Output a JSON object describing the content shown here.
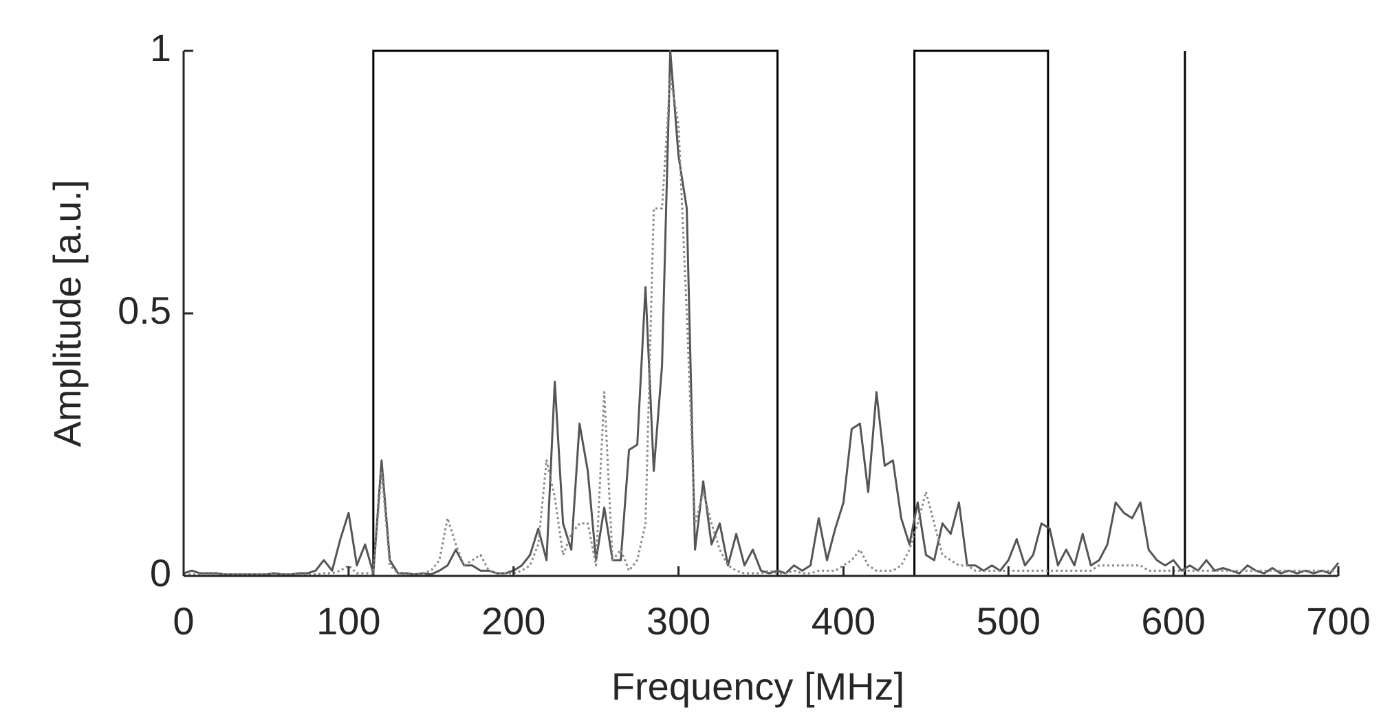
{
  "chart_data": {
    "type": "line",
    "xlabel": "Frequency [MHz]",
    "ylabel": "Amplitude [a.u.]",
    "x": [
      0,
      5,
      10,
      15,
      20,
      25,
      30,
      35,
      40,
      45,
      50,
      55,
      60,
      65,
      70,
      75,
      80,
      85,
      90,
      95,
      100,
      105,
      110,
      115,
      120,
      125,
      130,
      135,
      140,
      145,
      150,
      155,
      160,
      165,
      170,
      175,
      180,
      185,
      190,
      195,
      200,
      205,
      210,
      215,
      220,
      225,
      230,
      235,
      240,
      245,
      250,
      255,
      260,
      265,
      270,
      275,
      280,
      285,
      290,
      295,
      300,
      305,
      310,
      315,
      320,
      325,
      330,
      335,
      340,
      345,
      350,
      355,
      360,
      365,
      370,
      375,
      380,
      385,
      390,
      395,
      400,
      405,
      410,
      415,
      420,
      425,
      430,
      435,
      440,
      445,
      450,
      455,
      460,
      465,
      470,
      475,
      480,
      485,
      490,
      495,
      500,
      505,
      510,
      515,
      520,
      525,
      530,
      535,
      540,
      545,
      550,
      555,
      560,
      565,
      570,
      575,
      580,
      585,
      590,
      595,
      600,
      605,
      610,
      615,
      620,
      625,
      630,
      635,
      640,
      645,
      650,
      655,
      660,
      665,
      670,
      675,
      680,
      685,
      690,
      695,
      700
    ],
    "series": [
      {
        "color": "#555555",
        "style": "solid",
        "values": [
          0.005,
          0.01,
          0.005,
          0.005,
          0.005,
          0.003,
          0.003,
          0.003,
          0.003,
          0.003,
          0.003,
          0.005,
          0.003,
          0.003,
          0.005,
          0.005,
          0.01,
          0.03,
          0.01,
          0.07,
          0.12,
          0.02,
          0.06,
          0.005,
          0.22,
          0.03,
          0.005,
          0.005,
          0.003,
          0.005,
          0.003,
          0.01,
          0.02,
          0.05,
          0.02,
          0.02,
          0.01,
          0.01,
          0.005,
          0.005,
          0.01,
          0.02,
          0.04,
          0.09,
          0.03,
          0.37,
          0.1,
          0.05,
          0.29,
          0.2,
          0.03,
          0.13,
          0.03,
          0.03,
          0.24,
          0.25,
          0.55,
          0.2,
          0.4,
          1,
          0.8,
          0.7,
          0.05,
          0.18,
          0.06,
          0.1,
          0.02,
          0.08,
          0.02,
          0.05,
          0.01,
          0.005,
          0.01,
          0.005,
          0.02,
          0.01,
          0.02,
          0.11,
          0.03,
          0.09,
          0.14,
          0.28,
          0.29,
          0.16,
          0.35,
          0.21,
          0.22,
          0.11,
          0.06,
          0.14,
          0.04,
          0.03,
          0.1,
          0.08,
          0.14,
          0.02,
          0.02,
          0.01,
          0.02,
          0.01,
          0.03,
          0.07,
          0.02,
          0.04,
          0.1,
          0.09,
          0.02,
          0.05,
          0.02,
          0.08,
          0.02,
          0.03,
          0.06,
          0.14,
          0.12,
          0.11,
          0.14,
          0.05,
          0.03,
          0.02,
          0.03,
          0.01,
          0.02,
          0.01,
          0.03,
          0.01,
          0.015,
          0.01,
          0.005,
          0.02,
          0.01,
          0.005,
          0.015,
          0.005,
          0.01,
          0.005,
          0.01,
          0.005,
          0.01,
          0.005,
          0.025
        ]
      },
      {
        "color": "#888888",
        "style": "dotted",
        "values": [
          0.003,
          0.003,
          0.003,
          0.003,
          0.003,
          0.003,
          0.003,
          0.003,
          0.003,
          0.003,
          0.003,
          0.003,
          0.003,
          0.003,
          0.003,
          0.003,
          0.003,
          0.005,
          0.005,
          0.01,
          0.02,
          0.005,
          0.005,
          0.005,
          0.2,
          0.02,
          0.005,
          0.003,
          0.003,
          0.005,
          0.01,
          0.03,
          0.11,
          0.06,
          0.02,
          0.03,
          0.04,
          0.01,
          0.005,
          0.005,
          0.005,
          0.01,
          0.02,
          0.06,
          0.22,
          0.15,
          0.04,
          0.08,
          0.1,
          0.1,
          0.02,
          0.35,
          0.03,
          0.05,
          0.01,
          0.03,
          0.1,
          0.7,
          0.7,
          0.95,
          0.86,
          0.5,
          0.1,
          0.16,
          0.1,
          0.05,
          0.02,
          0.01,
          0.005,
          0.005,
          0.005,
          0.01,
          0.005,
          0.005,
          0.01,
          0.005,
          0.005,
          0.01,
          0.01,
          0.01,
          0.02,
          0.03,
          0.05,
          0.02,
          0.01,
          0.01,
          0.01,
          0.02,
          0.05,
          0.1,
          0.16,
          0.1,
          0.04,
          0.03,
          0.02,
          0.02,
          0.01,
          0.01,
          0.01,
          0.01,
          0.01,
          0.01,
          0.01,
          0.01,
          0.01,
          0.01,
          0.01,
          0.01,
          0.01,
          0.01,
          0.01,
          0.02,
          0.02,
          0.02,
          0.02,
          0.02,
          0.02,
          0.01,
          0.01,
          0.01,
          0.01,
          0.01,
          0.01,
          0.01,
          0.01,
          0.01,
          0.01,
          0.01,
          0.01,
          0.01,
          0.01,
          0.01,
          0.01,
          0.01,
          0.01,
          0.01,
          0.01,
          0.01,
          0.01,
          0.01,
          0.01
        ]
      }
    ],
    "bands": [
      [
        115,
        360
      ],
      [
        443,
        524
      ]
    ],
    "vlines": [
      607
    ],
    "band_color": "#000000",
    "xlim": [
      0,
      700
    ],
    "xticks": [
      0,
      100,
      200,
      300,
      400,
      500,
      600,
      700
    ],
    "ylim": [
      0,
      1
    ],
    "yticks": [
      0,
      0.5,
      1
    ]
  }
}
